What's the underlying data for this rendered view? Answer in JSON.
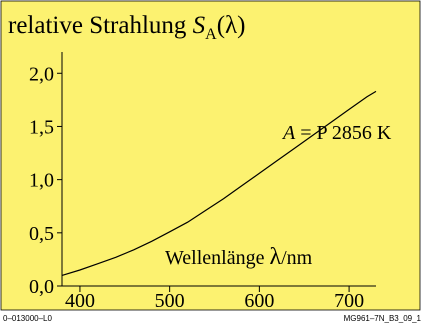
{
  "footer": {
    "left_code": "0–013000–L0",
    "right_code": "MG961–7N_B3_09_1"
  },
  "colors": {
    "panel_background": "#fcf270",
    "panel_border": "#000000",
    "curve": "#000000"
  },
  "chart_data": {
    "type": "line",
    "title_text": "relative Strahlung ",
    "title_symbol": "S",
    "title_subscript": "A",
    "title_arg": "(λ)",
    "xlabel_text": "Wellenlänge ",
    "xlabel_symbol": "λ",
    "xlabel_unit": "/nm",
    "annotation_symbol": "A",
    "annotation_rest": " = P 2856 K",
    "xlim": [
      380,
      730
    ],
    "ylim": [
      0,
      2.2
    ],
    "xticks": [
      400,
      500,
      600,
      700
    ],
    "xtick_labels": [
      "400",
      "500",
      "600",
      "700"
    ],
    "yticks": [
      0,
      0.5,
      1.0,
      1.5,
      2.0
    ],
    "ytick_labels": [
      "0,0",
      "0,5",
      "1,0",
      "1,5",
      "2,0"
    ],
    "grid": false,
    "series": [
      {
        "x": [
          380,
          400,
          420,
          440,
          460,
          480,
          500,
          520,
          540,
          560,
          580,
          600,
          620,
          640,
          660,
          680,
          700,
          720,
          730
        ],
        "y": [
          0.1,
          0.15,
          0.21,
          0.27,
          0.34,
          0.42,
          0.51,
          0.6,
          0.71,
          0.82,
          0.94,
          1.06,
          1.18,
          1.3,
          1.42,
          1.54,
          1.66,
          1.78,
          1.83
        ]
      }
    ]
  }
}
